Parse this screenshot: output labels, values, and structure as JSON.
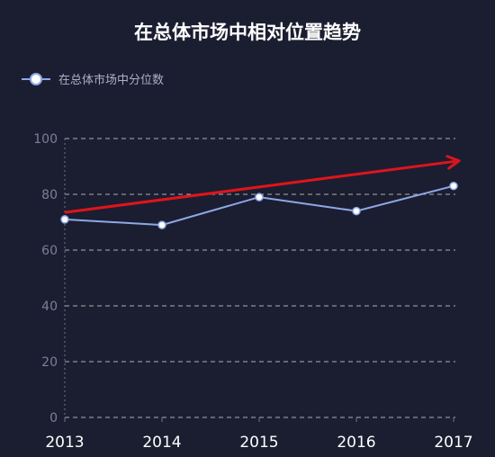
{
  "chart_data": {
    "type": "line",
    "title": "在总体市场中相对位置趋势",
    "categories": [
      "2013",
      "2014",
      "2015",
      "2016",
      "2017"
    ],
    "series": [
      {
        "name": "在总体市场中分位数",
        "values": [
          71,
          69,
          79,
          74,
          83
        ]
      }
    ],
    "ylim": [
      0,
      100
    ],
    "yticks": [
      0,
      20,
      40,
      60,
      80,
      100
    ],
    "xlabel": "",
    "ylabel": "",
    "grid": true,
    "legend_position": "top-left",
    "trend_arrow": {
      "from": 73.5,
      "to": 92
    }
  },
  "colors": {
    "background": "#1b1e30",
    "series": "#8ea8e8",
    "marker_fill": "#ffffff",
    "trend_arrow": "#e0141c",
    "grid": "#c8c8c8",
    "axis_text": "#7a8095",
    "x_label_text": "#ffffff",
    "title_text": "#ffffff",
    "legend_text": "#a9b0c8"
  }
}
